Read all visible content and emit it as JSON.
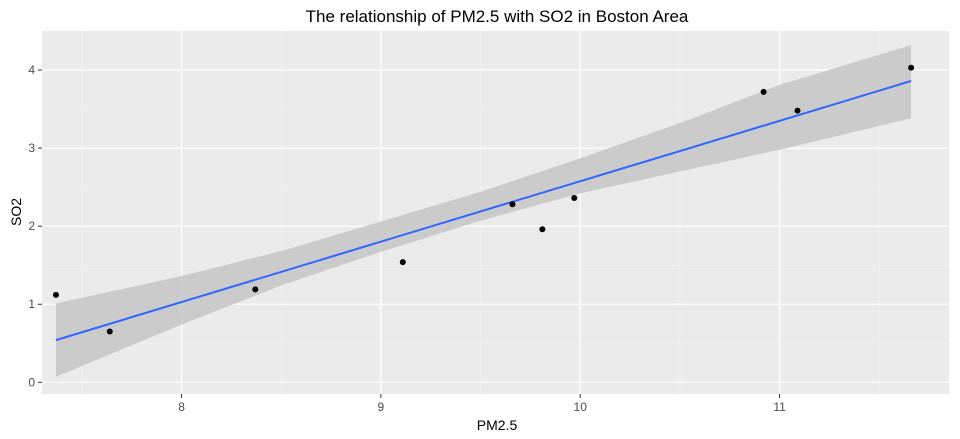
{
  "chart_data": {
    "type": "scatter",
    "title": "The relationship of PM2.5 with SO2 in Boston Area",
    "xlabel": "PM2.5",
    "ylabel": "SO2",
    "xlim": [
      7.3,
      11.85
    ],
    "ylim": [
      -0.15,
      4.5
    ],
    "x_ticks": [
      8,
      9,
      10,
      11
    ],
    "y_ticks": [
      0,
      1,
      2,
      3,
      4
    ],
    "x_tick_labels": [
      "8",
      "9",
      "10",
      "11"
    ],
    "y_tick_labels": [
      "0",
      "1",
      "2",
      "3",
      "4"
    ],
    "grid": true,
    "points": [
      {
        "x": 7.37,
        "y": 1.12
      },
      {
        "x": 7.64,
        "y": 0.65
      },
      {
        "x": 8.37,
        "y": 1.19
      },
      {
        "x": 9.11,
        "y": 1.54
      },
      {
        "x": 9.66,
        "y": 2.28
      },
      {
        "x": 9.81,
        "y": 1.96
      },
      {
        "x": 9.97,
        "y": 2.36
      },
      {
        "x": 10.92,
        "y": 3.72
      },
      {
        "x": 11.09,
        "y": 3.48
      },
      {
        "x": 11.66,
        "y": 4.03
      }
    ],
    "trend_line": {
      "method": "linear",
      "start": {
        "x": 7.37,
        "y": 0.54
      },
      "end": {
        "x": 11.66,
        "y": 3.86
      }
    },
    "confidence_band": [
      {
        "x": 7.37,
        "lower": 0.07,
        "upper": 1.01
      },
      {
        "x": 8.0,
        "lower": 0.74,
        "upper": 1.36
      },
      {
        "x": 8.5,
        "lower": 1.24,
        "upper": 1.68
      },
      {
        "x": 9.0,
        "lower": 1.67,
        "upper": 2.06
      },
      {
        "x": 9.5,
        "lower": 2.07,
        "upper": 2.44
      },
      {
        "x": 10.0,
        "lower": 2.42,
        "upper": 2.87
      },
      {
        "x": 10.5,
        "lower": 2.7,
        "upper": 3.32
      },
      {
        "x": 11.0,
        "lower": 2.98,
        "upper": 3.81
      },
      {
        "x": 11.66,
        "lower": 3.38,
        "upper": 4.32
      }
    ],
    "colors": {
      "panel_background": "#ebebeb",
      "grid_major": "#ffffff",
      "grid_minor": "#f2f2f2",
      "point": "#000000",
      "trend_line": "#3366ff",
      "band": "#c8c8c8",
      "tick": "#333333"
    }
  }
}
